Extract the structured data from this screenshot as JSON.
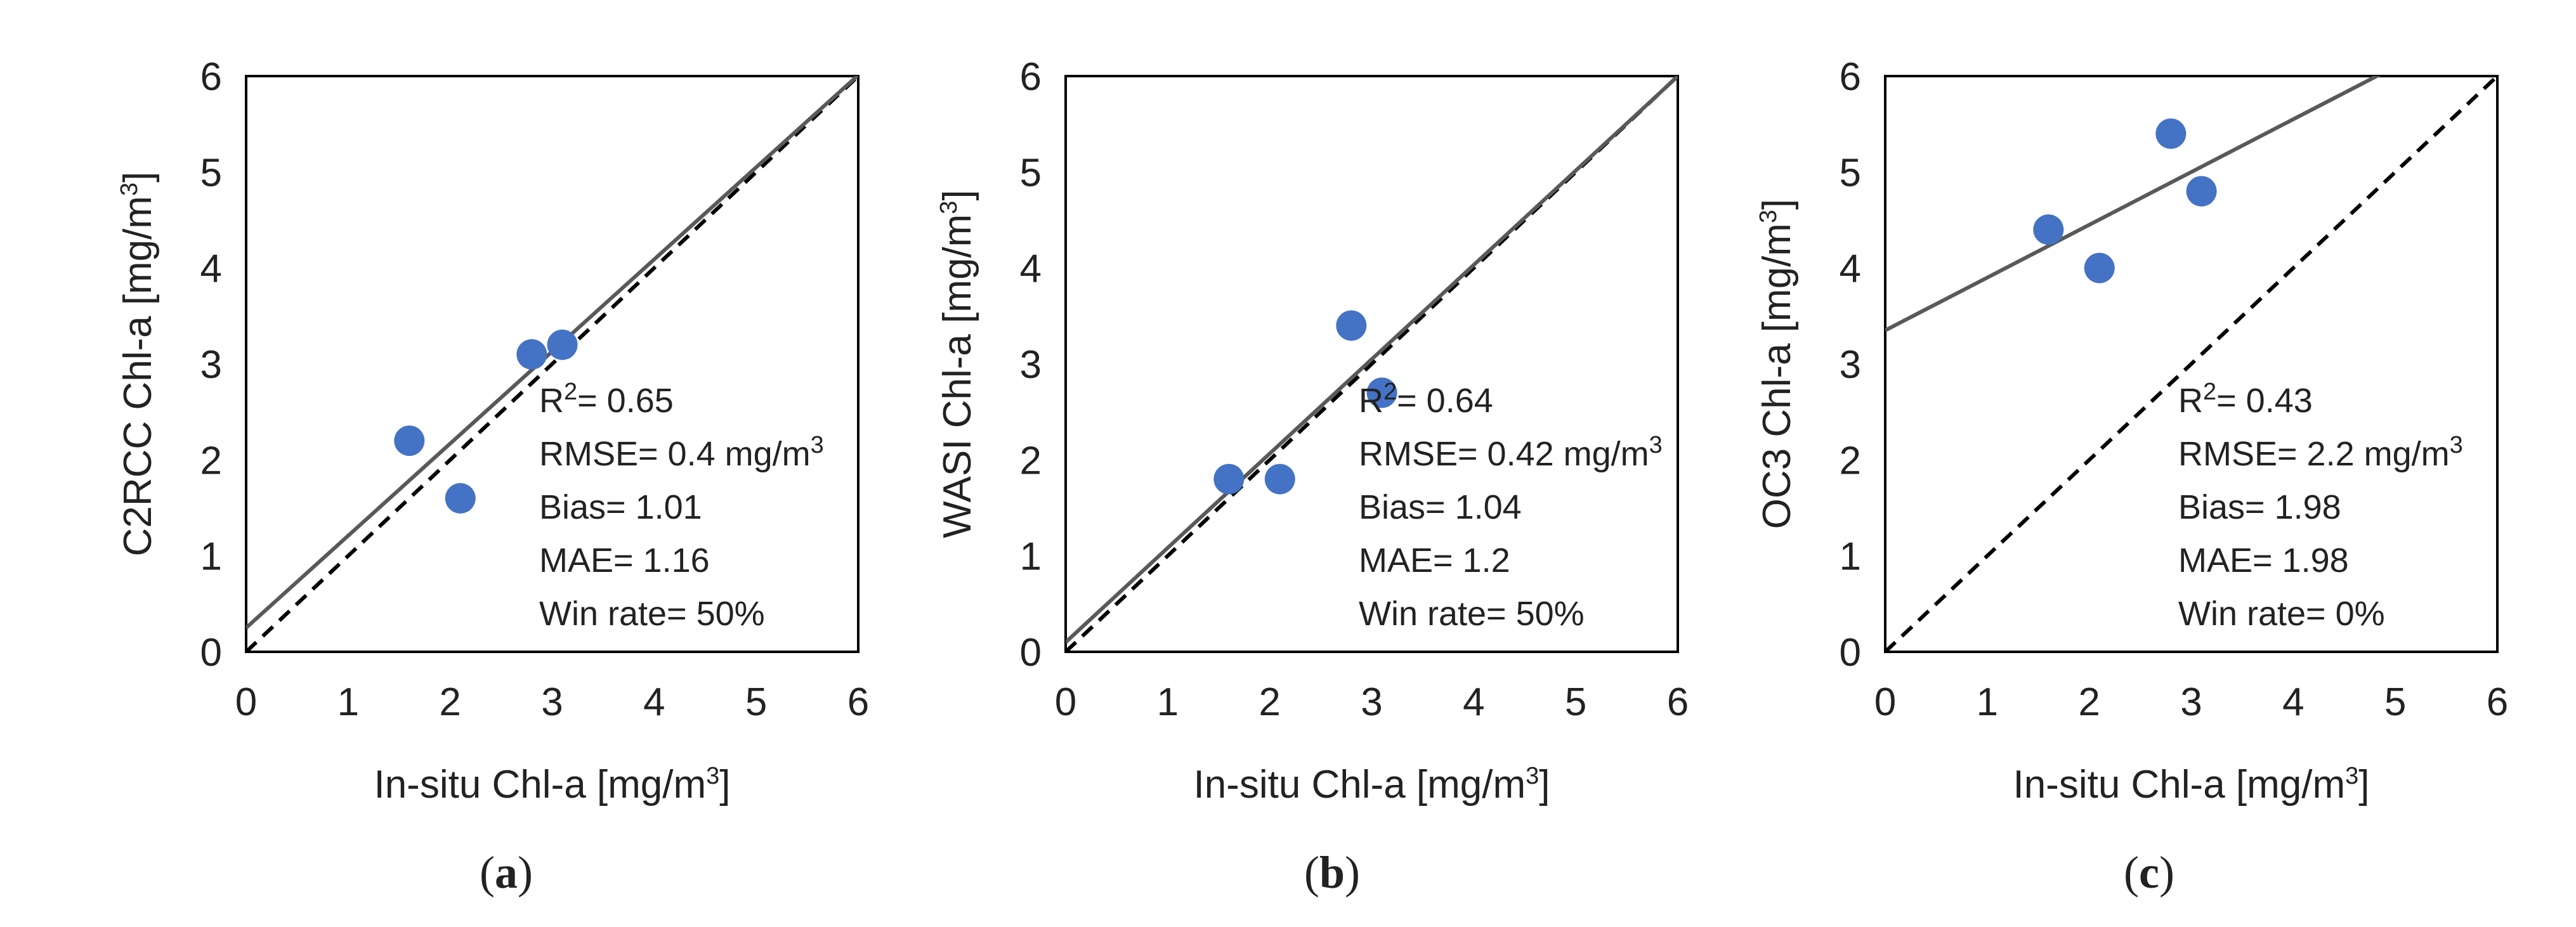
{
  "chart_data": [
    {
      "type": "scatter",
      "panel": "a",
      "caption_open": "(",
      "caption_letter": "a",
      "caption_close": ")",
      "xlabel": "In-situ Chl-a [mg/m",
      "xlabel_sup": "3",
      "xlabel_end": "]",
      "ylabel": "C2RCC Chl-a [mg/m",
      "ylabel_sup": "3",
      "ylabel_end": "]",
      "xlim": [
        0,
        6
      ],
      "ylim": [
        0,
        6
      ],
      "xticks": [
        0,
        1,
        2,
        3,
        4,
        5,
        6
      ],
      "yticks": [
        0,
        1,
        2,
        3,
        4,
        5,
        6
      ],
      "points": [
        {
          "x": 1.6,
          "y": 2.2
        },
        {
          "x": 2.1,
          "y": 1.6
        },
        {
          "x": 2.8,
          "y": 3.1
        },
        {
          "x": 3.1,
          "y": 3.2
        }
      ],
      "regression_line": {
        "intercept": 0.25,
        "slope": 0.96
      },
      "identity_line": {
        "intercept": 0,
        "slope": 1
      },
      "stats": {
        "r2_label": "R",
        "r2_sup": "2",
        "r2_value": "= 0.65",
        "rmse_label": "RMSE= 0.4 mg/m",
        "rmse_sup": "3",
        "bias": "Bias= 1.01",
        "mae": "MAE= 1.16",
        "win_rate": "Win rate= 50%"
      }
    },
    {
      "type": "scatter",
      "panel": "b",
      "caption_open": "(",
      "caption_letter": "b",
      "caption_close": ")",
      "xlabel": "In-situ Chl-a [mg/m",
      "xlabel_sup": "3",
      "xlabel_end": "]",
      "ylabel": "WASI Chl-a [mg/m",
      "ylabel_sup": "3",
      "ylabel_end": "]",
      "xlim": [
        0,
        6
      ],
      "ylim": [
        0,
        6
      ],
      "xticks": [
        0,
        1,
        2,
        3,
        4,
        5,
        6
      ],
      "yticks": [
        0,
        1,
        2,
        3,
        4,
        5,
        6
      ],
      "points": [
        {
          "x": 1.6,
          "y": 1.8
        },
        {
          "x": 2.1,
          "y": 1.8
        },
        {
          "x": 2.8,
          "y": 3.4
        },
        {
          "x": 3.1,
          "y": 2.7
        }
      ],
      "regression_line": {
        "intercept": 0.1,
        "slope": 0.983
      },
      "identity_line": {
        "intercept": 0,
        "slope": 1
      },
      "stats": {
        "r2_label": "R",
        "r2_sup": "2",
        "r2_value": "= 0.64",
        "rmse_label": "RMSE= 0.42 mg/m",
        "rmse_sup": "3",
        "bias": "Bias= 1.04",
        "mae": "MAE= 1.2",
        "win_rate": "Win rate= 50%"
      }
    },
    {
      "type": "scatter",
      "panel": "c",
      "caption_open": "(",
      "caption_letter": "c",
      "caption_close": ")",
      "xlabel": "In-situ Chl-a [mg/m",
      "xlabel_sup": "3",
      "xlabel_end": "]",
      "ylabel": "OC3 Chl-a [mg/m",
      "ylabel_sup": "3",
      "ylabel_end": "]",
      "xlim": [
        0,
        6
      ],
      "ylim": [
        0,
        6
      ],
      "xticks": [
        0,
        1,
        2,
        3,
        4,
        5,
        6
      ],
      "yticks": [
        0,
        1,
        2,
        3,
        4,
        5,
        6
      ],
      "points": [
        {
          "x": 1.6,
          "y": 4.4
        },
        {
          "x": 2.1,
          "y": 4.0
        },
        {
          "x": 2.8,
          "y": 5.4
        },
        {
          "x": 3.1,
          "y": 4.8
        }
      ],
      "regression_line": {
        "intercept": 3.35,
        "slope": 0.55
      },
      "identity_line": {
        "intercept": 0,
        "slope": 1
      },
      "stats": {
        "r2_label": "R",
        "r2_sup": "2",
        "r2_value": "= 0.43",
        "rmse_label": "RMSE= 2.2 mg/m",
        "rmse_sup": "3",
        "bias": "Bias= 1.98",
        "mae": "MAE= 1.98",
        "win_rate": "Win rate= 0%"
      }
    }
  ],
  "colors": {
    "point": "#4472C4",
    "regression": "#595959",
    "identity": "#000000",
    "axis": "#000000"
  }
}
